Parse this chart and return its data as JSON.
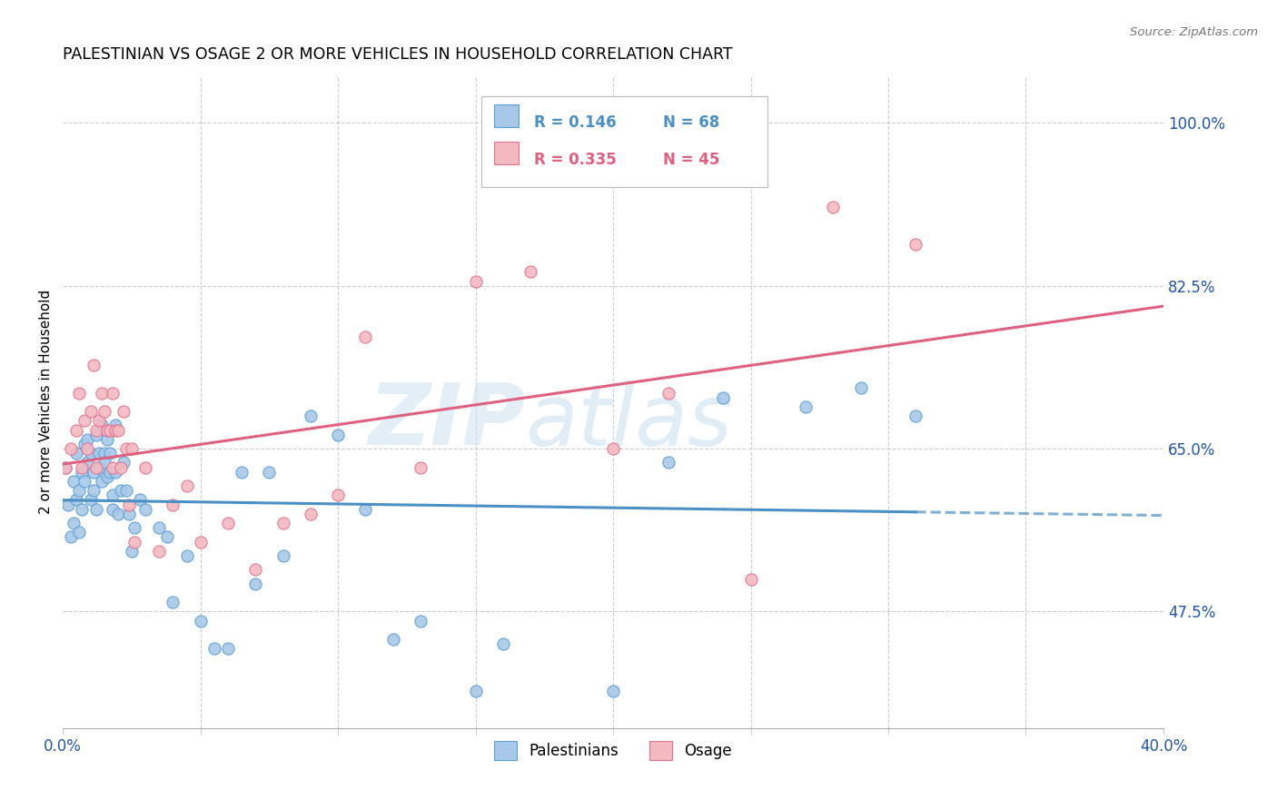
{
  "title": "PALESTINIAN VS OSAGE 2 OR MORE VEHICLES IN HOUSEHOLD CORRELATION CHART",
  "source": "Source: ZipAtlas.com",
  "ylabel": "2 or more Vehicles in Household",
  "xlim": [
    0.0,
    0.4
  ],
  "ylim": [
    0.35,
    1.05
  ],
  "blue_color": "#a8c8e8",
  "pink_color": "#f4b8c0",
  "blue_edge": "#5a9fd4",
  "pink_edge": "#e07090",
  "blue_line": "#4a90c4",
  "pink_line": "#e06080",
  "palestinians_R": 0.146,
  "palestinians_N": 68,
  "osage_R": 0.335,
  "osage_N": 45,
  "palestinians_x": [
    0.001,
    0.002,
    0.003,
    0.004,
    0.004,
    0.005,
    0.005,
    0.006,
    0.006,
    0.007,
    0.007,
    0.008,
    0.008,
    0.009,
    0.009,
    0.01,
    0.01,
    0.011,
    0.011,
    0.012,
    0.012,
    0.013,
    0.013,
    0.014,
    0.014,
    0.015,
    0.015,
    0.016,
    0.016,
    0.017,
    0.017,
    0.018,
    0.018,
    0.019,
    0.019,
    0.02,
    0.021,
    0.022,
    0.023,
    0.024,
    0.025,
    0.026,
    0.028,
    0.03,
    0.035,
    0.038,
    0.04,
    0.045,
    0.05,
    0.055,
    0.06,
    0.065,
    0.07,
    0.075,
    0.08,
    0.09,
    0.1,
    0.11,
    0.12,
    0.13,
    0.15,
    0.16,
    0.2,
    0.22,
    0.24,
    0.27,
    0.29,
    0.31
  ],
  "palestinians_y": [
    0.63,
    0.59,
    0.555,
    0.57,
    0.615,
    0.595,
    0.645,
    0.56,
    0.605,
    0.625,
    0.585,
    0.655,
    0.615,
    0.635,
    0.66,
    0.595,
    0.645,
    0.625,
    0.605,
    0.665,
    0.585,
    0.645,
    0.63,
    0.615,
    0.675,
    0.645,
    0.635,
    0.62,
    0.66,
    0.625,
    0.645,
    0.585,
    0.6,
    0.675,
    0.625,
    0.58,
    0.605,
    0.635,
    0.605,
    0.58,
    0.54,
    0.565,
    0.595,
    0.585,
    0.565,
    0.555,
    0.485,
    0.535,
    0.465,
    0.435,
    0.435,
    0.625,
    0.505,
    0.625,
    0.535,
    0.685,
    0.665,
    0.585,
    0.445,
    0.465,
    0.39,
    0.44,
    0.39,
    0.635,
    0.705,
    0.695,
    0.715,
    0.685
  ],
  "osage_x": [
    0.001,
    0.003,
    0.005,
    0.006,
    0.007,
    0.008,
    0.009,
    0.01,
    0.011,
    0.012,
    0.012,
    0.013,
    0.014,
    0.015,
    0.016,
    0.017,
    0.018,
    0.018,
    0.019,
    0.02,
    0.021,
    0.022,
    0.023,
    0.024,
    0.025,
    0.026,
    0.03,
    0.035,
    0.04,
    0.045,
    0.05,
    0.06,
    0.07,
    0.08,
    0.09,
    0.1,
    0.11,
    0.13,
    0.15,
    0.17,
    0.2,
    0.22,
    0.25,
    0.28,
    0.31
  ],
  "osage_y": [
    0.63,
    0.65,
    0.67,
    0.71,
    0.63,
    0.68,
    0.65,
    0.69,
    0.74,
    0.63,
    0.67,
    0.68,
    0.71,
    0.69,
    0.67,
    0.67,
    0.71,
    0.63,
    0.67,
    0.67,
    0.63,
    0.69,
    0.65,
    0.59,
    0.65,
    0.55,
    0.63,
    0.54,
    0.59,
    0.61,
    0.55,
    0.57,
    0.52,
    0.57,
    0.58,
    0.6,
    0.77,
    0.63,
    0.83,
    0.84,
    0.65,
    0.71,
    0.51,
    0.91,
    0.87
  ]
}
